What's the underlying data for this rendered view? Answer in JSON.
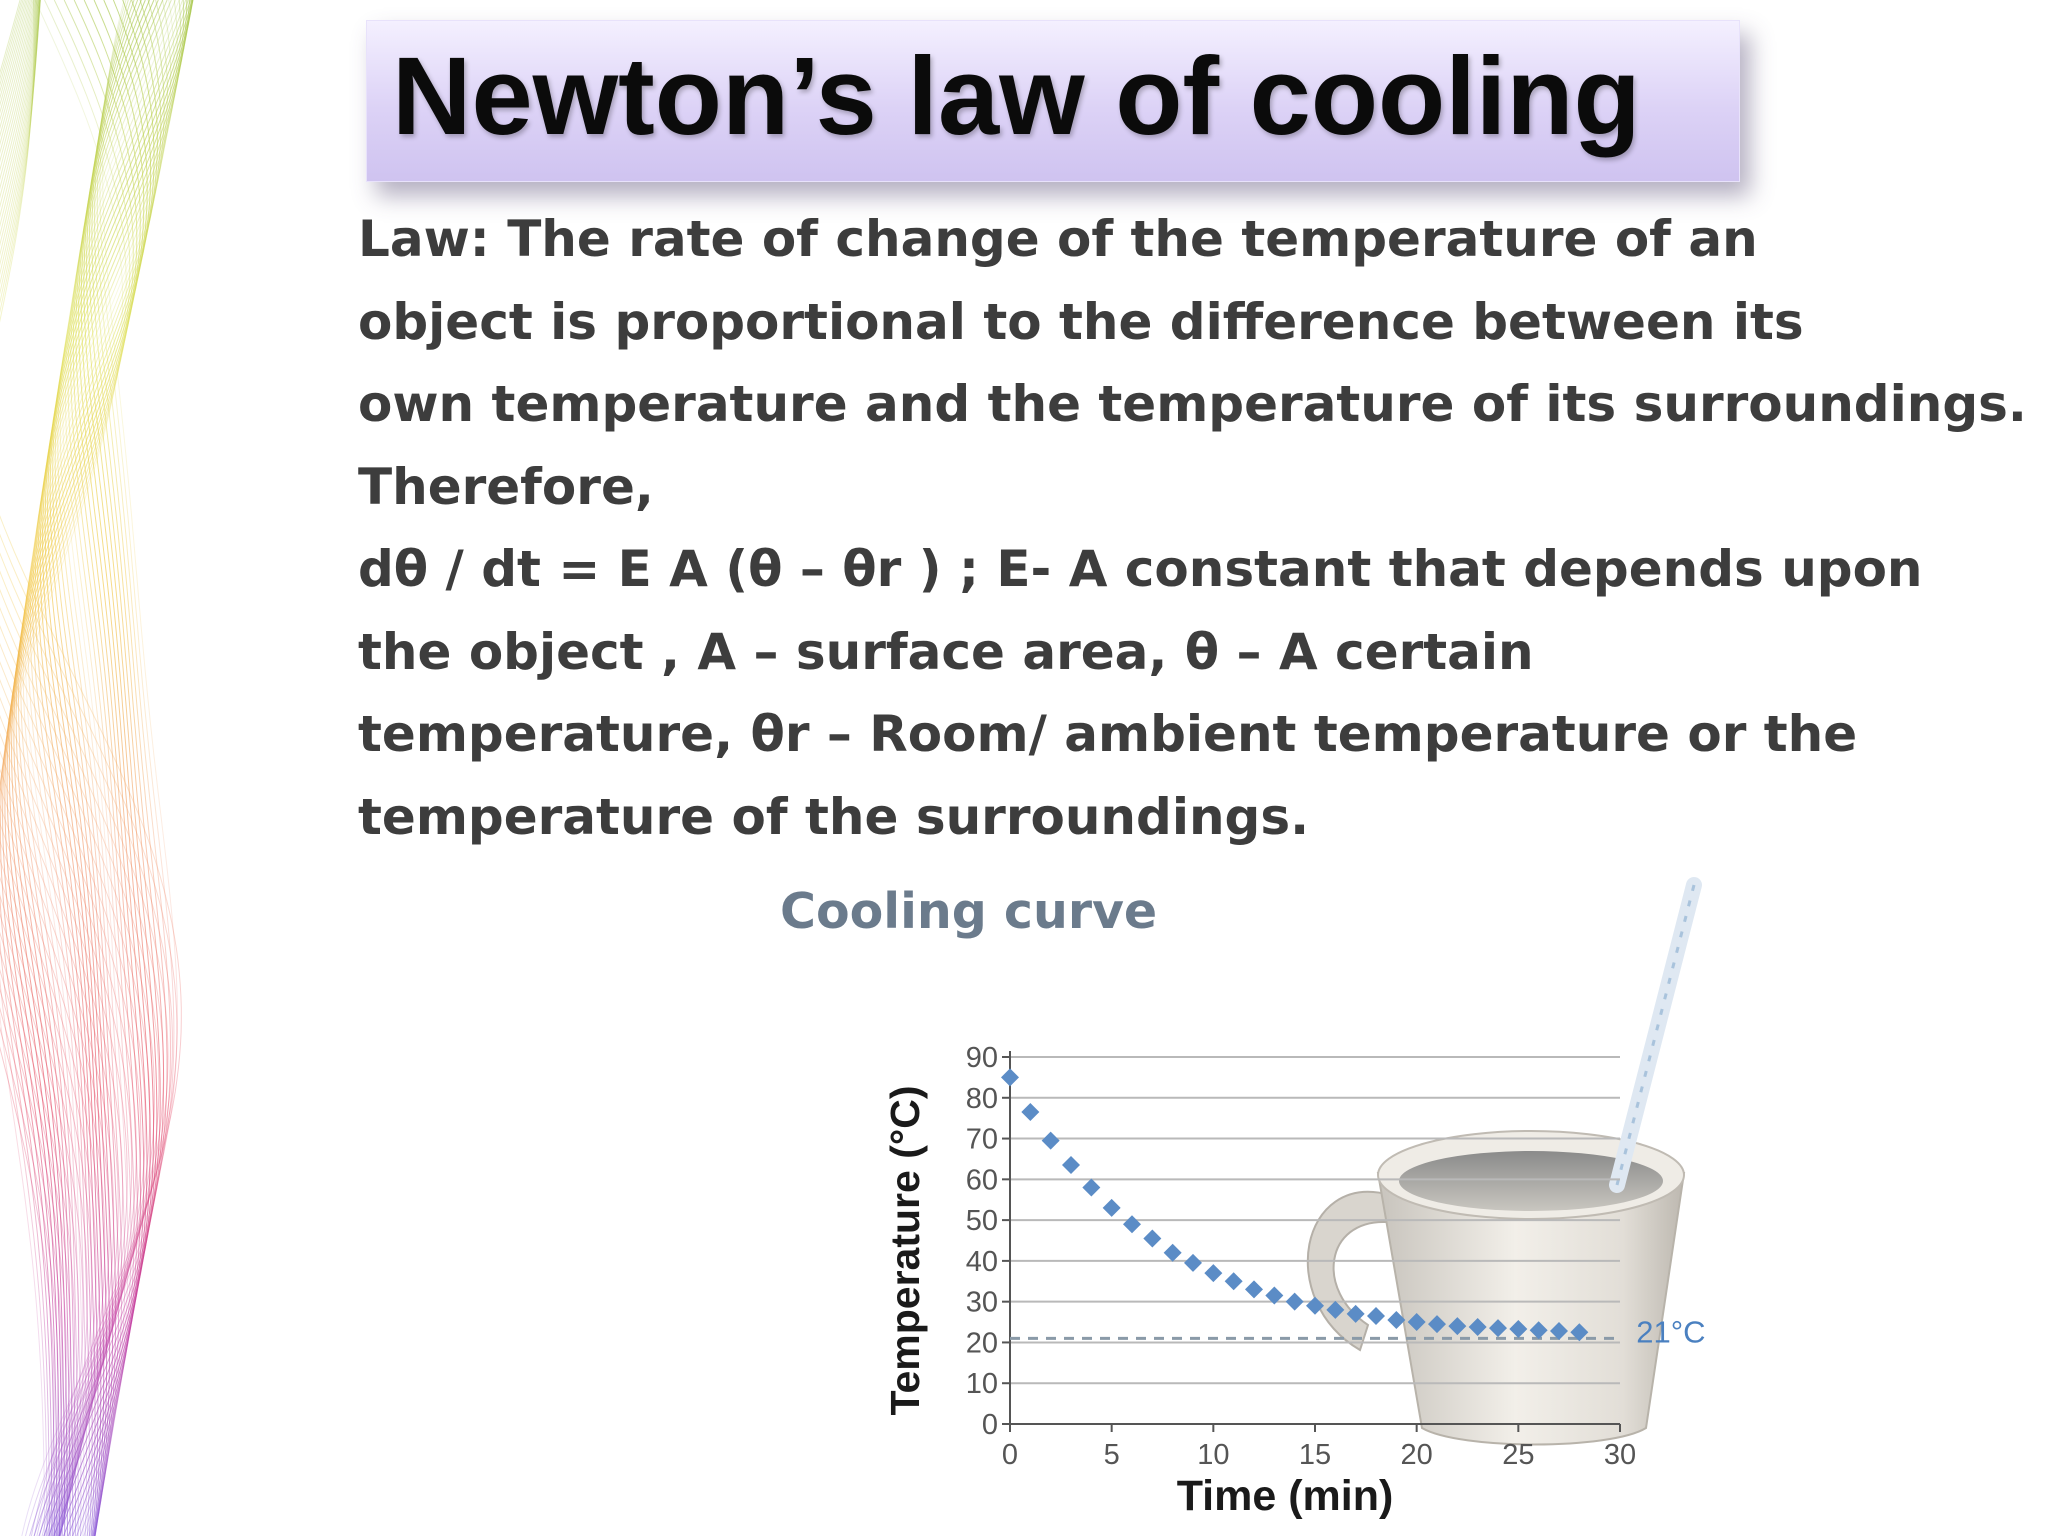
{
  "slide": {
    "title": "Newton’s law of cooling",
    "body_lines": [
      "Law: The rate of change of the temperature of an",
      "object is proportional to the difference between its",
      "own temperature and the temperature of its surroundings.",
      "Therefore,",
      "dθ / dt = E A (θ – θr ) ; E- A constant that depends upon",
      "the object , A – surface area, θ – A certain",
      "temperature, θr – Room/ ambient temperature or the",
      "temperature of the surroundings."
    ]
  },
  "colors": {
    "title_text": "#0b0b0b",
    "body_text": "#3d3d3d",
    "chart_title": "#6b7b8c",
    "marker": "#5b8cc6",
    "ambient_label": "#4a80c0",
    "gridline": "#b9b9b9"
  },
  "chart_data": {
    "type": "scatter",
    "title": "Cooling curve",
    "xlabel": "Time (min)",
    "ylabel": "Temperature (°C)",
    "xlim": [
      0,
      30
    ],
    "ylim": [
      0,
      90
    ],
    "xticks": [
      0,
      5,
      10,
      15,
      20,
      25,
      30
    ],
    "yticks": [
      0,
      10,
      20,
      30,
      40,
      50,
      60,
      70,
      80,
      90
    ],
    "grid": true,
    "marker": "diamond",
    "ambient_line": {
      "y": 21,
      "label": "21°C",
      "style": "dashed"
    },
    "series": [
      {
        "x": [
          0,
          1,
          2,
          3,
          4,
          5,
          6,
          7,
          8,
          9,
          10,
          11,
          12,
          13,
          14,
          15,
          16,
          17,
          18,
          19,
          20,
          21,
          22,
          23,
          24,
          25,
          26,
          27,
          28
        ],
        "y": [
          85,
          76.5,
          69.5,
          63.5,
          58,
          53,
          49,
          45.5,
          42,
          39.5,
          37,
          35,
          33,
          31.5,
          30,
          29,
          28,
          27,
          26.5,
          25.5,
          25,
          24.5,
          24,
          23.8,
          23.5,
          23.3,
          23,
          22.8,
          22.5
        ]
      }
    ],
    "illustration": "mug-with-thermometer-icon"
  }
}
